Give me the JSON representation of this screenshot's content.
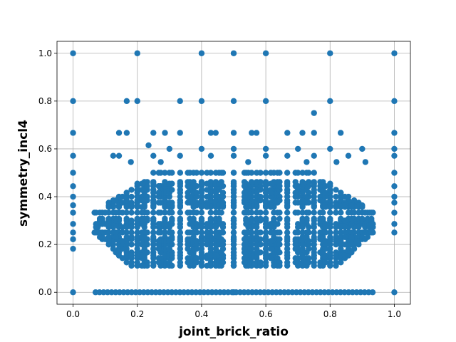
{
  "chart_data": {
    "type": "scatter",
    "title": "",
    "xlabel": "joint_brick_ratio",
    "ylabel": "symmetry_incl4",
    "xlim": [
      -0.05,
      1.05
    ],
    "ylim": [
      -0.05,
      1.05
    ],
    "xticks": [
      0.0,
      0.2,
      0.4,
      0.6,
      0.8,
      1.0
    ],
    "yticks": [
      0.0,
      0.2,
      0.4,
      0.6,
      0.8,
      1.0
    ],
    "xtick_labels": [
      "0.0",
      "0.2",
      "0.4",
      "0.6",
      "0.8",
      "1.0"
    ],
    "ytick_labels": [
      "0.0",
      "0.2",
      "0.4",
      "0.6",
      "0.8",
      "1.0"
    ],
    "grid": true,
    "legend": "none",
    "marker_color": "#1f77b4",
    "series": [
      {
        "points": [
          [
            0.0,
            0.0
          ],
          [
            0.0,
            0.182
          ],
          [
            0.0,
            0.222
          ],
          [
            0.0,
            0.25
          ],
          [
            0.0,
            0.286
          ],
          [
            0.0,
            0.333
          ],
          [
            0.0,
            0.364
          ],
          [
            0.0,
            0.4
          ],
          [
            0.0,
            0.444
          ],
          [
            0.0,
            0.5
          ],
          [
            0.0,
            0.571
          ],
          [
            0.0,
            0.667
          ],
          [
            0.0,
            0.8
          ],
          [
            0.0,
            1.0
          ],
          [
            1.0,
            0.0
          ],
          [
            1.0,
            0.25
          ],
          [
            1.0,
            0.286
          ],
          [
            1.0,
            0.333
          ],
          [
            1.0,
            0.375
          ],
          [
            1.0,
            0.4
          ],
          [
            1.0,
            0.444
          ],
          [
            1.0,
            0.5
          ],
          [
            1.0,
            0.571
          ],
          [
            1.0,
            0.6
          ],
          [
            1.0,
            0.667
          ],
          [
            1.0,
            0.8
          ],
          [
            1.0,
            1.0
          ],
          [
            0.5,
            0.0
          ],
          [
            0.5,
            0.111
          ],
          [
            0.5,
            0.125
          ],
          [
            0.5,
            0.143
          ],
          [
            0.5,
            0.167
          ],
          [
            0.5,
            0.2
          ],
          [
            0.5,
            0.222
          ],
          [
            0.5,
            0.25
          ],
          [
            0.5,
            0.286
          ],
          [
            0.5,
            0.3
          ],
          [
            0.5,
            0.333
          ],
          [
            0.5,
            0.375
          ],
          [
            0.5,
            0.4
          ],
          [
            0.5,
            0.429
          ],
          [
            0.5,
            0.444
          ],
          [
            0.5,
            0.5
          ],
          [
            0.5,
            0.571
          ],
          [
            0.5,
            0.6
          ],
          [
            0.5,
            0.667
          ],
          [
            0.5,
            0.8
          ],
          [
            0.5,
            1.0
          ],
          [
            0.167,
            0.8
          ],
          [
            0.2,
            0.8
          ],
          [
            0.333,
            0.8
          ],
          [
            0.4,
            0.8
          ],
          [
            0.6,
            0.8
          ],
          [
            0.8,
            0.8
          ],
          [
            0.6,
            1.0
          ],
          [
            0.4,
            1.0
          ],
          [
            0.8,
            1.0
          ],
          [
            0.2,
            1.0
          ],
          [
            0.143,
            0.667
          ],
          [
            0.167,
            0.667
          ],
          [
            0.25,
            0.667
          ],
          [
            0.286,
            0.667
          ],
          [
            0.333,
            0.667
          ],
          [
            0.429,
            0.667
          ],
          [
            0.444,
            0.667
          ],
          [
            0.556,
            0.667
          ],
          [
            0.571,
            0.667
          ],
          [
            0.667,
            0.667
          ],
          [
            0.714,
            0.667
          ],
          [
            0.75,
            0.667
          ],
          [
            0.833,
            0.667
          ],
          [
            0.75,
            0.75
          ],
          [
            0.235,
            0.615
          ],
          [
            0.4,
            0.6
          ],
          [
            0.6,
            0.6
          ],
          [
            0.8,
            0.6
          ],
          [
            0.9,
            0.6
          ],
          [
            0.3,
            0.6
          ],
          [
            0.7,
            0.6
          ],
          [
            0.125,
            0.571
          ],
          [
            0.143,
            0.571
          ],
          [
            0.25,
            0.571
          ],
          [
            0.333,
            0.571
          ],
          [
            0.429,
            0.571
          ],
          [
            0.6,
            0.571
          ],
          [
            0.667,
            0.571
          ],
          [
            0.75,
            0.571
          ],
          [
            0.857,
            0.571
          ],
          [
            0.18,
            0.545
          ],
          [
            0.273,
            0.545
          ],
          [
            0.545,
            0.545
          ],
          [
            0.727,
            0.545
          ],
          [
            0.82,
            0.545
          ],
          [
            0.91,
            0.545
          ]
        ]
      }
    ],
    "generated_region": {
      "note_x_range": [
        0.06,
        0.94
      ],
      "y_range": [
        0.1,
        0.5
      ]
    }
  }
}
